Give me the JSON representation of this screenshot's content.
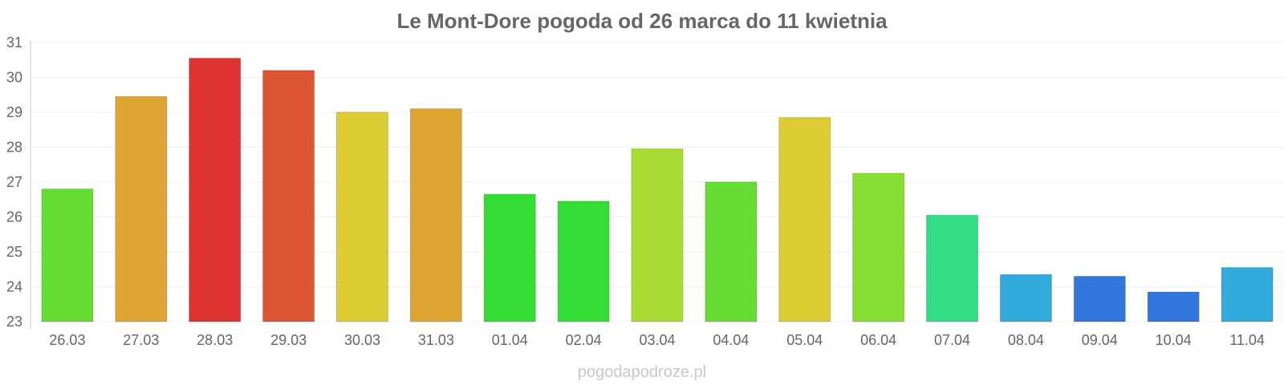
{
  "chart_data": {
    "type": "bar",
    "title": "Le Mont-Dore pogoda od 26 marca do 11 kwietnia",
    "xlabel": "",
    "ylabel": "",
    "ylim": [
      23,
      31
    ],
    "yticks": [
      23,
      24,
      25,
      26,
      27,
      28,
      29,
      30,
      31
    ],
    "grid": true,
    "categories": [
      "26.03",
      "27.03",
      "28.03",
      "29.03",
      "30.03",
      "31.03",
      "01.04",
      "02.04",
      "03.04",
      "04.04",
      "05.04",
      "06.04",
      "07.04",
      "08.04",
      "09.04",
      "10.04",
      "11.04"
    ],
    "values": [
      26.8,
      29.45,
      30.55,
      30.2,
      29.0,
      29.1,
      26.65,
      26.45,
      27.95,
      27.0,
      28.85,
      27.25,
      26.05,
      24.35,
      24.3,
      23.85,
      24.55
    ],
    "colors": [
      "#66dd33",
      "#dda633",
      "#dd3333",
      "#dd5533",
      "#ddcc33",
      "#dda633",
      "#33dd33",
      "#33dd33",
      "#aadd33",
      "#66dd33",
      "#ddcc33",
      "#88dd33",
      "#33dd88",
      "#33aadd",
      "#3377dd",
      "#3377dd",
      "#33aadd"
    ]
  },
  "watermark": "pogodapodroze.pl"
}
